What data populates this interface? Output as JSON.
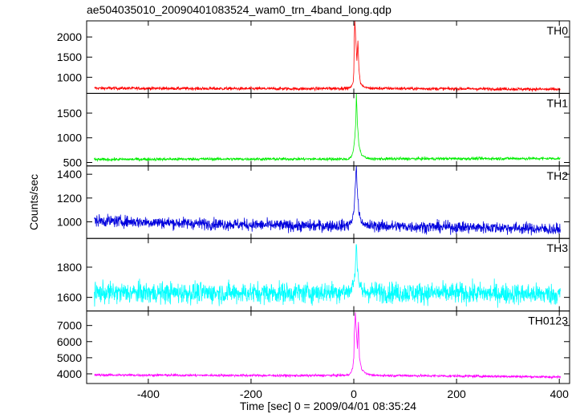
{
  "chart_data": {
    "type": "line",
    "title": "ae504035010_20090401083524_wam0_trn_4band_long.qdp",
    "xlabel": "Time [sec] 0 = 2009/04/01 08:35:24",
    "ylabel": "Counts/sec",
    "xlim": [
      -520,
      420
    ],
    "xticks": [
      -400,
      -200,
      0,
      200,
      400
    ],
    "grid": false,
    "panels": [
      {
        "name": "TH0",
        "color": "#ff0000",
        "ylim": [
          600,
          2400
        ],
        "yticks": [
          1000,
          1500,
          2000
        ],
        "baseline": [
          [
            -505,
            730
          ],
          [
            -300,
            720
          ],
          [
            -100,
            715
          ],
          [
            0,
            730
          ],
          [
            100,
            720
          ],
          [
            300,
            710
          ],
          [
            400,
            700
          ]
        ],
        "noise": 28,
        "burst": [
          [
            -10,
            730
          ],
          [
            -4,
            780
          ],
          [
            -1,
            900
          ],
          [
            0,
            1150
          ],
          [
            1,
            2000
          ],
          [
            2,
            2400
          ],
          [
            4,
            1900
          ],
          [
            6,
            1400
          ],
          [
            8,
            1900
          ],
          [
            10,
            1200
          ],
          [
            13,
            850
          ],
          [
            20,
            760
          ],
          [
            30,
            730
          ]
        ]
      },
      {
        "name": "TH1",
        "color": "#00ee00",
        "ylim": [
          430,
          1900
        ],
        "yticks": [
          500,
          1000,
          1500
        ],
        "baseline": [
          [
            -505,
            560
          ],
          [
            -300,
            570
          ],
          [
            -100,
            570
          ],
          [
            0,
            570
          ],
          [
            100,
            575
          ],
          [
            300,
            580
          ],
          [
            400,
            580
          ]
        ],
        "noise": 22,
        "burst": [
          [
            -10,
            575
          ],
          [
            -5,
            620
          ],
          [
            -2,
            700
          ],
          [
            0,
            820
          ],
          [
            2,
            1000
          ],
          [
            4,
            1350
          ],
          [
            5,
            1900
          ],
          [
            7,
            1300
          ],
          [
            10,
            850
          ],
          [
            15,
            650
          ],
          [
            25,
            590
          ],
          [
            35,
            575
          ]
        ]
      },
      {
        "name": "TH2",
        "color": "#0000dd",
        "ylim": [
          860,
          1470
        ],
        "yticks": [
          1000,
          1200,
          1400
        ],
        "baseline": [
          [
            -505,
            1010
          ],
          [
            -300,
            985
          ],
          [
            -100,
            965
          ],
          [
            0,
            970
          ],
          [
            100,
            960
          ],
          [
            300,
            950
          ],
          [
            400,
            935
          ]
        ],
        "noise": 35,
        "burst": [
          [
            -10,
            980
          ],
          [
            -5,
            1000
          ],
          [
            -1,
            1050
          ],
          [
            1,
            1150
          ],
          [
            3,
            1300
          ],
          [
            5,
            1470
          ],
          [
            7,
            1250
          ],
          [
            10,
            1080
          ],
          [
            15,
            1000
          ],
          [
            25,
            975
          ]
        ]
      },
      {
        "name": "TH3",
        "color": "#00ffff",
        "ylim": [
          1510,
          1990
        ],
        "yticks": [
          1600,
          1800
        ],
        "baseline": [
          [
            -505,
            1630
          ],
          [
            -300,
            1630
          ],
          [
            -100,
            1630
          ],
          [
            0,
            1640
          ],
          [
            100,
            1630
          ],
          [
            300,
            1625
          ],
          [
            400,
            1620
          ]
        ],
        "noise": 50,
        "burst": [
          [
            -8,
            1640
          ],
          [
            -2,
            1680
          ],
          [
            1,
            1720
          ],
          [
            3,
            1800
          ],
          [
            5,
            1980
          ],
          [
            7,
            1800
          ],
          [
            10,
            1700
          ],
          [
            15,
            1650
          ]
        ]
      },
      {
        "name": "TH0123",
        "color": "#ff00ff",
        "ylim": [
          3400,
          7900
        ],
        "yticks": [
          4000,
          5000,
          6000,
          7000
        ],
        "baseline": [
          [
            -505,
            3930
          ],
          [
            -300,
            3910
          ],
          [
            -100,
            3890
          ],
          [
            0,
            3920
          ],
          [
            100,
            3890
          ],
          [
            300,
            3840
          ],
          [
            400,
            3800
          ]
        ],
        "noise": 55,
        "burst": [
          [
            -10,
            3950
          ],
          [
            -5,
            4100
          ],
          [
            -2,
            4400
          ],
          [
            0,
            5000
          ],
          [
            1,
            6500
          ],
          [
            3,
            7800
          ],
          [
            5,
            6600
          ],
          [
            7,
            5600
          ],
          [
            9,
            7200
          ],
          [
            11,
            5000
          ],
          [
            15,
            4300
          ],
          [
            25,
            4000
          ],
          [
            35,
            3930
          ]
        ]
      }
    ]
  }
}
